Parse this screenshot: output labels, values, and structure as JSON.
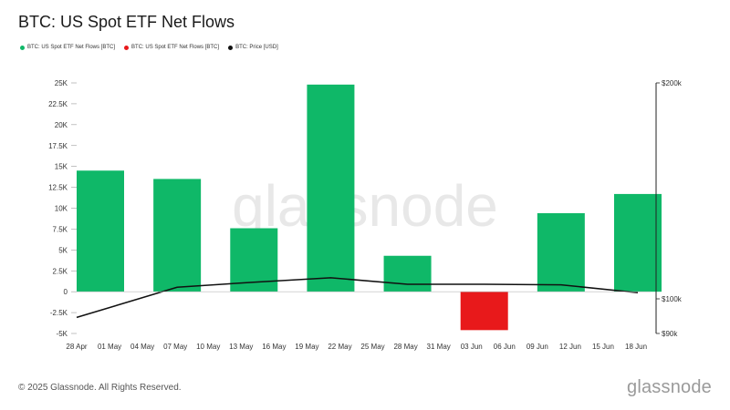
{
  "header": {
    "title": "BTC: US Spot ETF Net Flows"
  },
  "legend": [
    {
      "label": "BTC: US Spot ETF Net Flows [BTC]",
      "color": "#0fb868"
    },
    {
      "label": "BTC: US Spot ETF Net Flows [BTC]",
      "color": "#e8191b"
    },
    {
      "label": "BTC: Price [USD]",
      "color": "#111111"
    }
  ],
  "footer": {
    "copyright": "© 2025 Glassnode. All Rights Reserved.",
    "brand": "glassnode"
  },
  "watermark": "glassnode",
  "chart_data": {
    "type": "bar",
    "x_tick_labels": [
      "28 Apr",
      "01 May",
      "04 May",
      "07 May",
      "10 May",
      "13 May",
      "16 May",
      "19 May",
      "22 May",
      "25 May",
      "28 May",
      "31 May",
      "03 Jun",
      "06 Jun",
      "09 Jun",
      "12 Jun",
      "15 Jun",
      "18 Jun"
    ],
    "y_tick_labels": [
      "25K",
      "22.5K",
      "20K",
      "17.5K",
      "15K",
      "12.5K",
      "10K",
      "7.5K",
      "5K",
      "2.5K",
      "0",
      "-2.5K",
      "-5K"
    ],
    "y_ticks": [
      25000,
      22500,
      20000,
      17500,
      15000,
      12500,
      10000,
      7500,
      5000,
      2500,
      0,
      -2500,
      -5000
    ],
    "ylim": [
      -5000,
      25000
    ],
    "y2_tick_labels": [
      "$200k",
      "$100k",
      "$90k"
    ],
    "series": [
      {
        "name": "BTC: US Spot ETF Net Flows [BTC]",
        "kind": "bar",
        "bars": [
          {
            "week_start": "28 Apr",
            "value": 14500
          },
          {
            "week_start": "05 May",
            "value": 13500
          },
          {
            "week_start": "12 May",
            "value": 7600
          },
          {
            "week_start": "19 May",
            "value": 24800
          },
          {
            "week_start": "26 May",
            "value": 4300
          },
          {
            "week_start": "02 Jun",
            "value": -4600
          },
          {
            "week_start": "09 Jun",
            "value": 9400
          },
          {
            "week_start": "16 Jun",
            "value": 11700
          }
        ]
      },
      {
        "name": "BTC: Price [USD]",
        "kind": "line",
        "points": [
          {
            "date": "28 Apr",
            "value": 94500
          },
          {
            "date": "05 May",
            "value": 103800
          },
          {
            "date": "12 May",
            "value": 105500
          },
          {
            "date": "19 May",
            "value": 107000
          },
          {
            "date": "26 May",
            "value": 104800
          },
          {
            "date": "02 Jun",
            "value": 104800
          },
          {
            "date": "09 Jun",
            "value": 104600
          },
          {
            "date": "16 Jun",
            "value": 102000
          }
        ]
      }
    ],
    "colors": {
      "positive": "#0fb868",
      "negative": "#e8191b",
      "price": "#111111"
    },
    "legend_position": "top-left",
    "grid": false
  }
}
